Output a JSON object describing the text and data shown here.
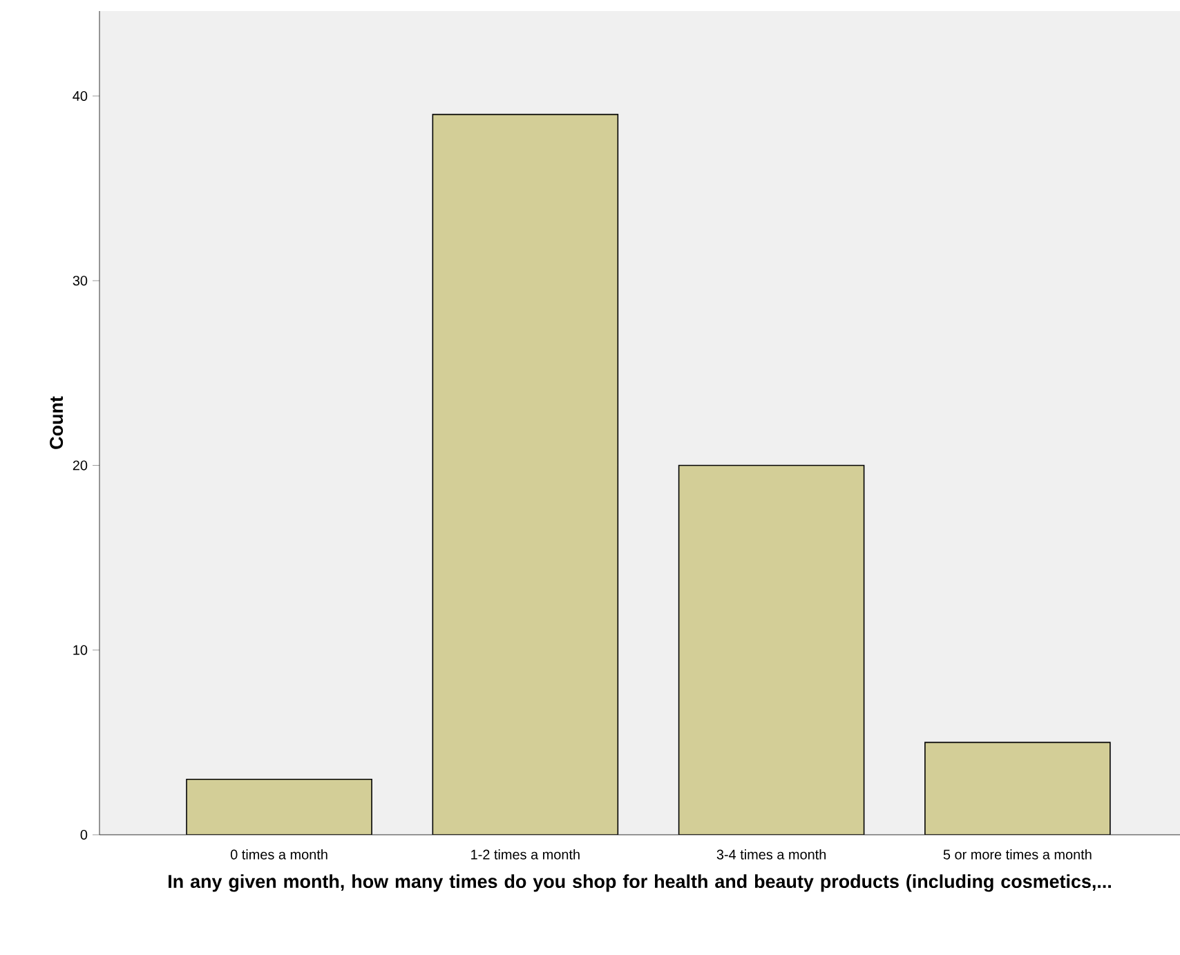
{
  "chart_data": {
    "type": "bar",
    "xlabel": "In any given month, how many times do you shop for health and beauty products (including cosmetics,...",
    "ylabel": "Count",
    "categories": [
      "0 times a month",
      "1-2 times a month",
      "3-4 times a month",
      "5 or more times a month"
    ],
    "values": [
      3,
      39,
      20,
      5
    ],
    "color": "#d3ce97",
    "ylim": [
      0,
      44.6
    ],
    "yticks": [
      0,
      10,
      20,
      30,
      40
    ]
  }
}
